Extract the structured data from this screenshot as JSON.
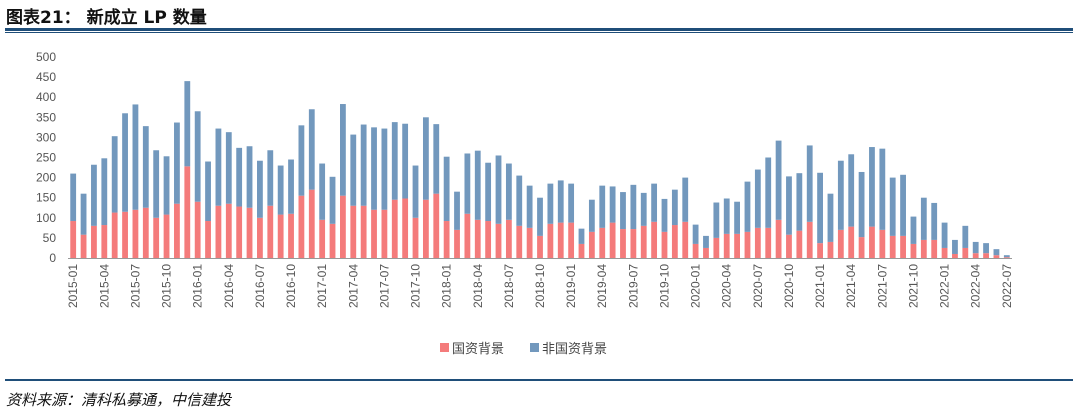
{
  "header": {
    "title": "图表21：  新成立 LP 数量"
  },
  "footer": {
    "source": "资料来源：清科私募通，中信建投"
  },
  "colors": {
    "state": "#f47b7b",
    "nonstate": "#7298bd",
    "rule": "#1f4e79"
  },
  "chart_data": {
    "type": "bar",
    "stacked": true,
    "title": "新成立 LP 数量",
    "xlabel": "",
    "ylabel": "",
    "ylim": [
      0,
      500
    ],
    "yticks": [
      0,
      50,
      100,
      150,
      200,
      250,
      300,
      350,
      400,
      450,
      500
    ],
    "legend_position": "bottom",
    "categories": [
      "2015-01",
      "2015-02",
      "2015-03",
      "2015-04",
      "2015-05",
      "2015-06",
      "2015-07",
      "2015-08",
      "2015-09",
      "2015-10",
      "2015-11",
      "2015-12",
      "2016-01",
      "2016-02",
      "2016-03",
      "2016-04",
      "2016-05",
      "2016-06",
      "2016-07",
      "2016-08",
      "2016-09",
      "2016-10",
      "2016-11",
      "2016-12",
      "2017-01",
      "2017-02",
      "2017-03",
      "2017-04",
      "2017-05",
      "2017-06",
      "2017-07",
      "2017-08",
      "2017-09",
      "2017-10",
      "2017-11",
      "2017-12",
      "2018-01",
      "2018-02",
      "2018-03",
      "2018-04",
      "2018-05",
      "2018-06",
      "2018-07",
      "2018-08",
      "2018-09",
      "2018-10",
      "2018-11",
      "2018-12",
      "2019-01",
      "2019-02",
      "2019-03",
      "2019-04",
      "2019-05",
      "2019-06",
      "2019-07",
      "2019-08",
      "2019-09",
      "2019-10",
      "2019-11",
      "2019-12",
      "2020-01",
      "2020-02",
      "2020-03",
      "2020-04",
      "2020-05",
      "2020-06",
      "2020-07",
      "2020-08",
      "2020-09",
      "2020-10",
      "2020-11",
      "2020-12",
      "2021-01",
      "2021-02",
      "2021-03",
      "2021-04",
      "2021-05",
      "2021-06",
      "2021-07",
      "2021-08",
      "2021-09",
      "2021-10",
      "2021-11",
      "2021-12",
      "2022-01",
      "2022-02",
      "2022-03",
      "2022-04",
      "2022-05",
      "2022-06",
      "2022-07"
    ],
    "xtick_labels": [
      "2015-01",
      "2015-04",
      "2015-07",
      "2015-10",
      "2016-01",
      "2016-04",
      "2016-07",
      "2016-10",
      "2017-01",
      "2017-04",
      "2017-07",
      "2017-10",
      "2018-01",
      "2018-04",
      "2018-07",
      "2018-10",
      "2019-01",
      "2019-04",
      "2019-07",
      "2019-10",
      "2020-01",
      "2020-04",
      "2020-07",
      "2020-10",
      "2021-01",
      "2021-04",
      "2021-07",
      "2021-10",
      "2022-01",
      "2022-04",
      "2022-07"
    ],
    "series": [
      {
        "name": "国资背景",
        "values": [
          92,
          58,
          80,
          82,
          113,
          115,
          120,
          125,
          100,
          108,
          135,
          228,
          140,
          92,
          130,
          135,
          128,
          125,
          100,
          130,
          108,
          110,
          155,
          170,
          95,
          85,
          155,
          130,
          130,
          120,
          120,
          145,
          148,
          100,
          145,
          160,
          92,
          70,
          110,
          95,
          92,
          85,
          95,
          80,
          75,
          55,
          85,
          88,
          88,
          35,
          65,
          75,
          88,
          72,
          72,
          80,
          90,
          65,
          82,
          90,
          35,
          25,
          50,
          60,
          60,
          65,
          75,
          75,
          95,
          58,
          68,
          90,
          37,
          40,
          70,
          78,
          52,
          78,
          70,
          55,
          55,
          35,
          45,
          45,
          25,
          10,
          25,
          12,
          12,
          7,
          2
        ]
      },
      {
        "name": "非国资背景",
        "values": [
          118,
          102,
          152,
          166,
          190,
          245,
          262,
          203,
          168,
          145,
          202,
          212,
          225,
          148,
          192,
          178,
          146,
          153,
          142,
          138,
          122,
          135,
          175,
          200,
          140,
          117,
          228,
          177,
          202,
          205,
          202,
          193,
          186,
          130,
          205,
          173,
          160,
          95,
          150,
          172,
          145,
          170,
          140,
          125,
          105,
          95,
          100,
          105,
          97,
          38,
          80,
          105,
          90,
          92,
          110,
          82,
          95,
          82,
          88,
          110,
          48,
          30,
          88,
          88,
          80,
          125,
          145,
          175,
          197,
          145,
          143,
          190,
          175,
          120,
          172,
          180,
          162,
          198,
          202,
          145,
          152,
          68,
          105,
          92,
          63,
          35,
          55,
          28,
          25,
          15,
          5
        ]
      }
    ]
  }
}
